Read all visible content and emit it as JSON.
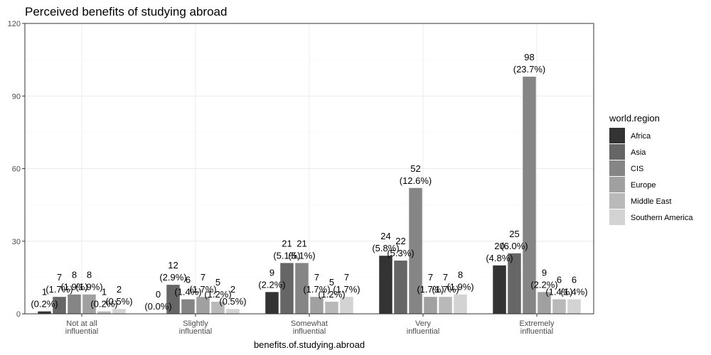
{
  "chart_data": {
    "type": "bar",
    "title": "Perceived benefits of studying abroad",
    "xlabel": "benefits.of.studying.abroad",
    "ylabel": "",
    "ylim": [
      0,
      120
    ],
    "yticks": [
      0,
      30,
      60,
      90,
      120
    ],
    "grid": true,
    "legend_position": "right",
    "legend_title": "world.region",
    "categories": [
      [
        "Not at all",
        "influential"
      ],
      [
        "Slightly",
        "influential"
      ],
      [
        "Somewhat",
        "influential"
      ],
      [
        "Very",
        "influential"
      ],
      [
        "Extremely",
        "influential"
      ]
    ],
    "series": [
      {
        "name": "Africa",
        "color": "#333333",
        "values": [
          1,
          0,
          9,
          24,
          20
        ],
        "percents": [
          "(0.2%)",
          "(0.0%)",
          "(2.2%)",
          "(5.8%)",
          "(4.8%)"
        ]
      },
      {
        "name": "Asia",
        "color": "#666666",
        "values": [
          7,
          12,
          21,
          22,
          25
        ],
        "percents": [
          "(1.7%)",
          "(2.9%)",
          "(5.1%)",
          "(5.3%)",
          "(6.0%)"
        ]
      },
      {
        "name": "CIS",
        "color": "#858585",
        "values": [
          8,
          6,
          21,
          52,
          98
        ],
        "percents": [
          "(1.9%)",
          "(1.4%)",
          "(5.1%)",
          "(12.6%)",
          "(23.7%)"
        ]
      },
      {
        "name": "Europe",
        "color": "#a0a0a0",
        "values": [
          8,
          7,
          7,
          7,
          9
        ],
        "percents": [
          "(1.9%)",
          "(1.7%)",
          "(1.7%)",
          "(1.7%)",
          "(2.2%)"
        ]
      },
      {
        "name": "Middle East",
        "color": "#b9b9b9",
        "values": [
          1,
          5,
          5,
          7,
          6
        ],
        "percents": [
          "(0.2%)",
          "(1.2%)",
          "(1.2%)",
          "(1.7%)",
          "(1.4%)"
        ]
      },
      {
        "name": "Southern America",
        "color": "#d3d3d3",
        "values": [
          2,
          2,
          7,
          8,
          6
        ],
        "percents": [
          "(0.5%)",
          "(0.5%)",
          "(1.7%)",
          "(1.9%)",
          "(1.4%)"
        ]
      }
    ]
  }
}
